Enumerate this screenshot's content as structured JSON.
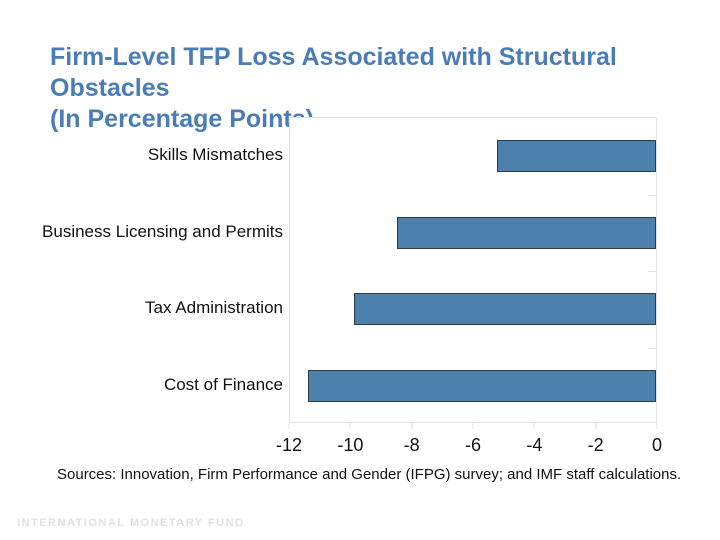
{
  "title": {
    "line1": "Firm-Level TFP Loss Associated with Structural Obstacles",
    "line2": "(In Percentage Points)"
  },
  "source_note": "Sources: Innovation, Firm Performance and Gender (IFPG) survey; and IMF staff calculations.",
  "footer": "INTERNATIONAL MONETARY FUND",
  "chart_data": {
    "type": "bar",
    "orientation": "horizontal",
    "title": "Firm-Level TFP Loss Associated with Structural Obstacles (In Percentage Points)",
    "categories": [
      "Skills Mismatches",
      "Business Licensing and Permits",
      "Tax Administration",
      "Cost of Finance"
    ],
    "values": [
      -5.2,
      -8.5,
      -9.9,
      -11.4
    ],
    "xlabel": "",
    "ylabel": "",
    "xlim": [
      -12,
      0
    ],
    "x_ticks": [
      -12,
      -10,
      -8,
      -6,
      -4,
      -2,
      0
    ],
    "grid": false,
    "legend": "none",
    "colors": {
      "bar_fill": "#4C81AE",
      "bar_border": "#2F3B47",
      "title_text": "#4A7CB8",
      "axis_line": "#E2E2E2"
    }
  }
}
